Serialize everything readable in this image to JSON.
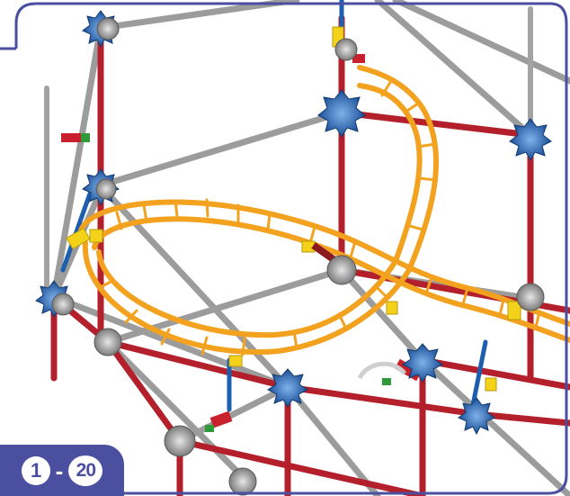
{
  "step": {
    "section": "1",
    "separator": "-",
    "number": "20"
  },
  "colors": {
    "frame": "#4b4fa0",
    "rod_red": "#b5202a",
    "rod_gray": "#9a9a9a",
    "track_orange": "#f3a21f",
    "connector_blue": "#1d5fae",
    "connector_gray": "#8a8a8a",
    "connector_yellow": "#f4d21a",
    "connector_green": "#2e9a3a"
  }
}
